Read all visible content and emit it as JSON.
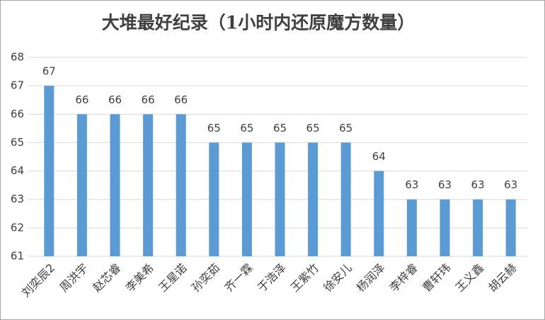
{
  "chart_data": {
    "type": "bar",
    "title": "大堆最好纪录（1小时内还原魔方数量）",
    "categories": [
      "刘奕辰2",
      "周洪宇",
      "赵芯睿",
      "李美希",
      "王星诺",
      "孙奕茹",
      "齐一霖",
      "于浩泽",
      "王紫竹",
      "徐安儿",
      "杨润泽",
      "李梓睿",
      "曹轩玮",
      "王义鑫",
      "胡云赫"
    ],
    "values": [
      67,
      66,
      66,
      66,
      66,
      65,
      65,
      65,
      65,
      65,
      64,
      63,
      63,
      63,
      63
    ],
    "color": "#5b9bd5",
    "ylim": [
      61,
      68
    ],
    "yticks": [
      61,
      62,
      63,
      64,
      65,
      66,
      67,
      68
    ],
    "grid": true
  }
}
